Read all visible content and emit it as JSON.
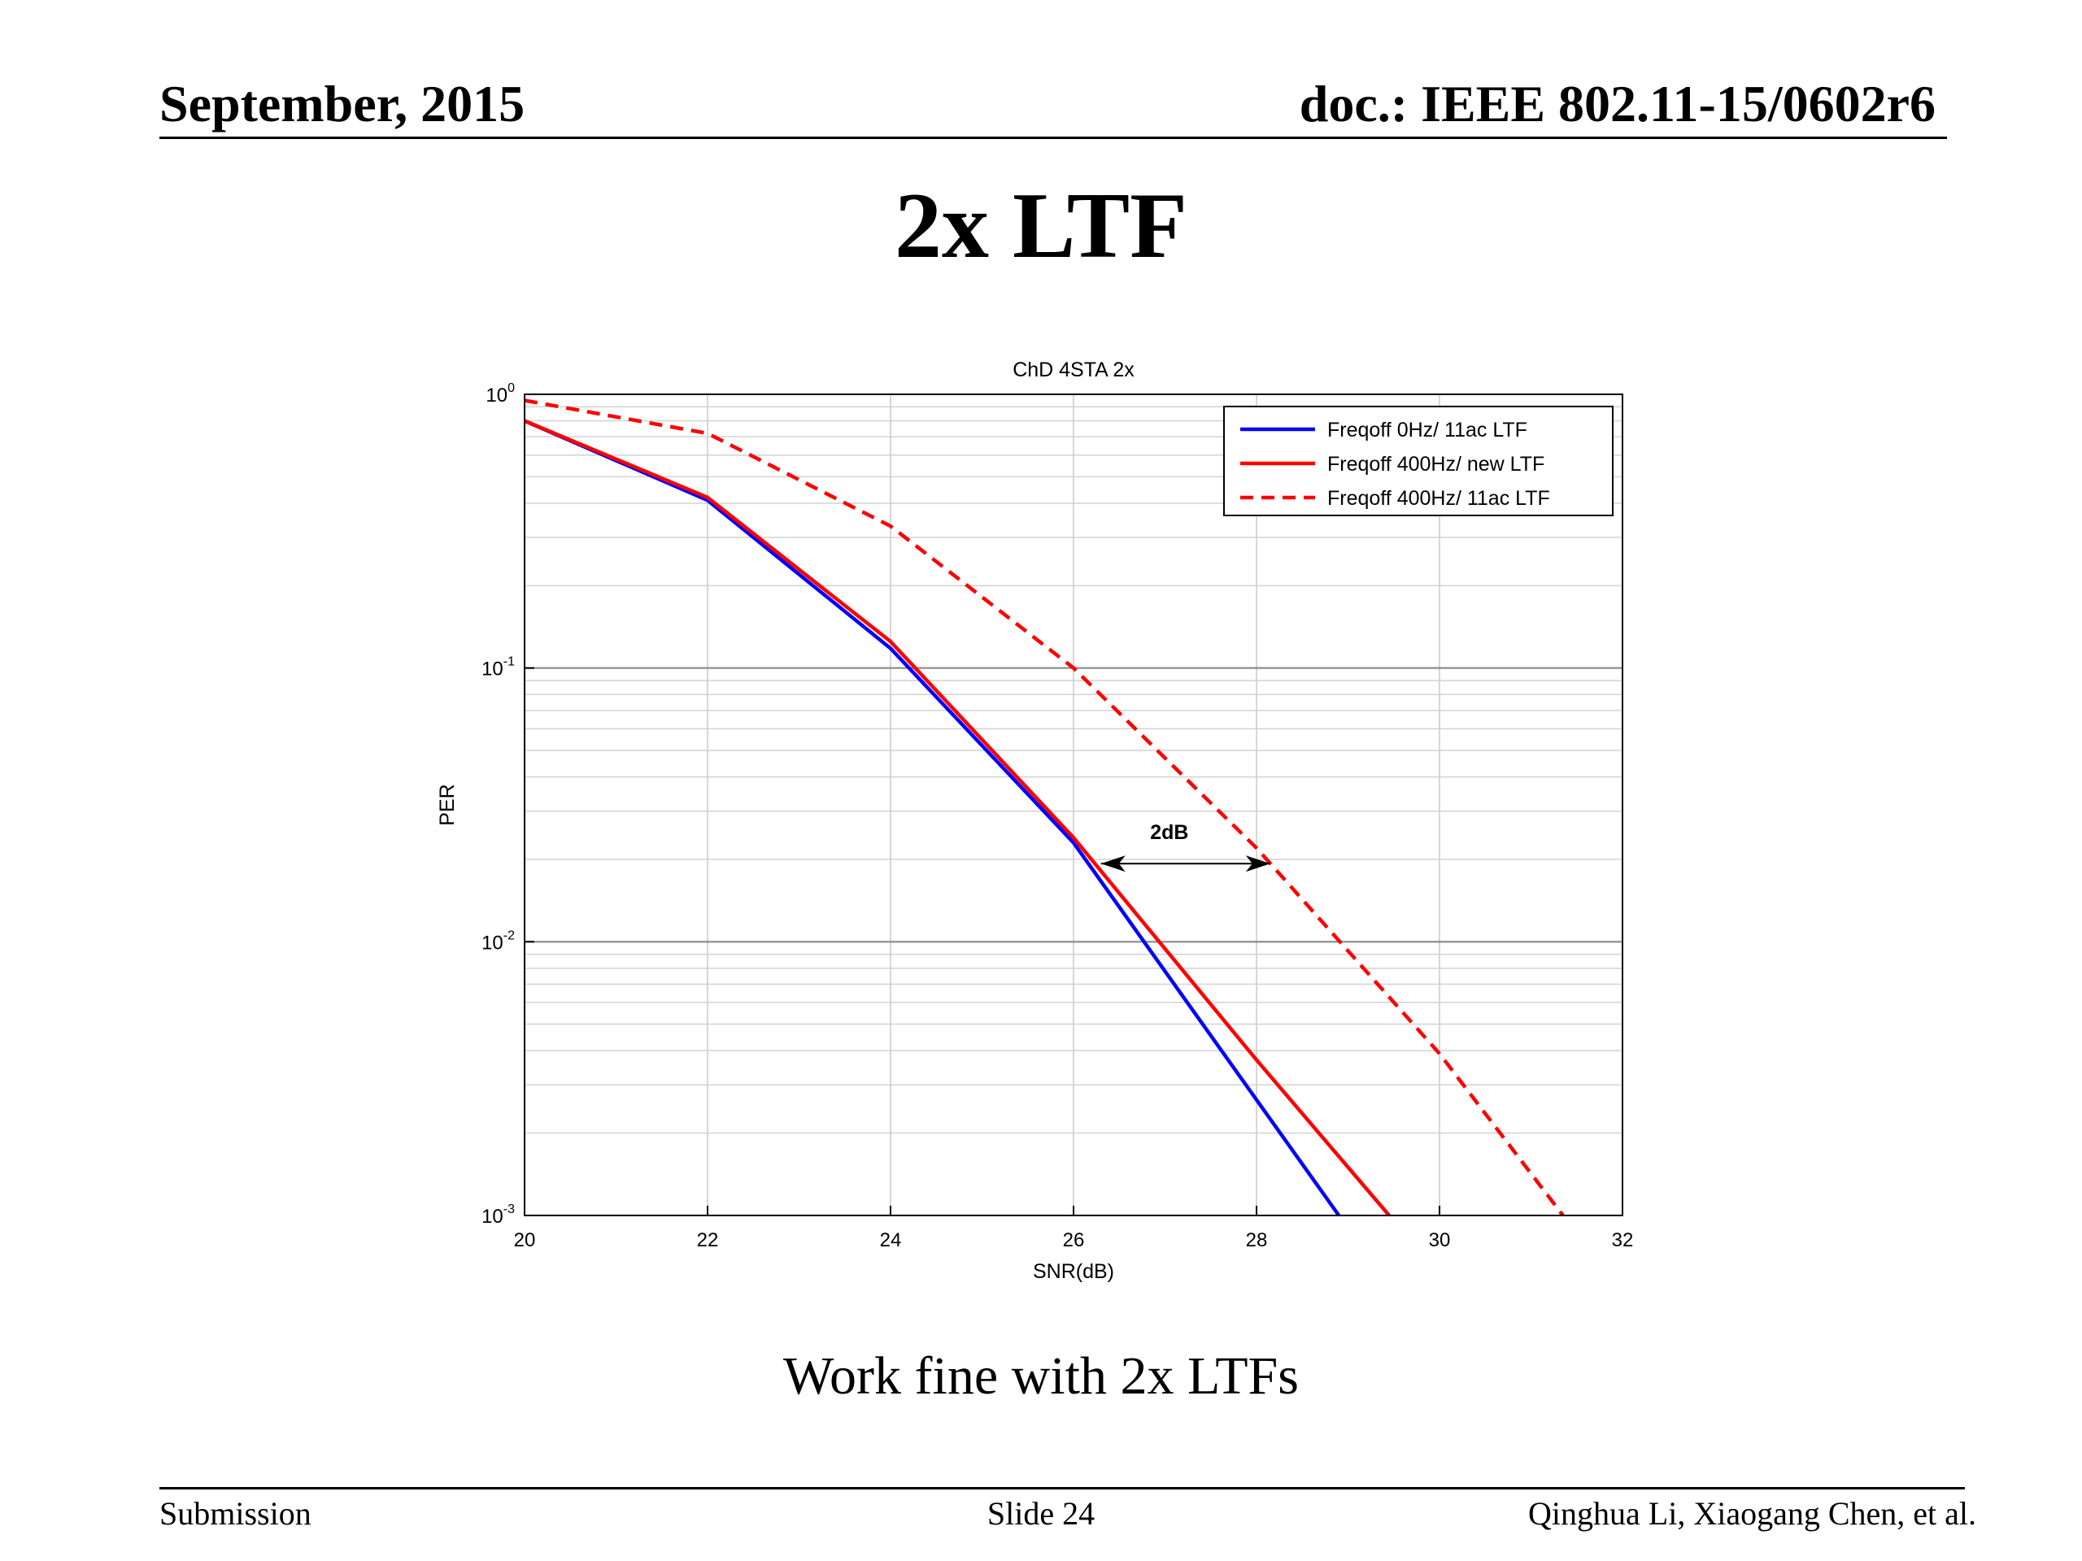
{
  "header": {
    "date": "September, 2015",
    "doc_id": "doc.: IEEE 802.11-15/0602r6"
  },
  "slide": {
    "title": "2x LTF",
    "caption": "Work fine with 2x LTFs"
  },
  "footer": {
    "left": "Submission",
    "center": "Slide 24",
    "right": "Qinghua Li, Xiaogang Chen, et al."
  },
  "chart_data": {
    "type": "line",
    "title": "ChD 4STA 2x",
    "xlabel": "SNR(dB)",
    "ylabel": "PER",
    "xlim": [
      20,
      32
    ],
    "ylim": [
      0.001,
      1
    ],
    "yscale": "log",
    "grid": true,
    "legend_position": "top-right",
    "x_ticks": [
      20,
      22,
      24,
      26,
      28,
      30,
      32
    ],
    "x_tick_labels": [
      "20",
      "22",
      "24",
      "26",
      "28",
      "30",
      "32"
    ],
    "y_ticks": [
      {
        "value": 1,
        "base": "10",
        "exp": "0"
      },
      {
        "value": 0.1,
        "base": "10",
        "exp": "-1"
      },
      {
        "value": 0.01,
        "base": "10",
        "exp": "-2"
      },
      {
        "value": 0.001,
        "base": "10",
        "exp": "-3"
      }
    ],
    "series": [
      {
        "name": "Freqoff 0Hz/ 11ac LTF",
        "color": "#0000ff",
        "dash": "solid",
        "x": [
          20,
          22,
          24,
          26,
          28.9
        ],
        "y": [
          0.8,
          0.41,
          0.118,
          0.023,
          0.001
        ]
      },
      {
        "name": "Freqoff 400Hz/ new LTF",
        "color": "#ff0000",
        "dash": "solid",
        "x": [
          20,
          22,
          24,
          26,
          28,
          29.45
        ],
        "y": [
          0.8,
          0.42,
          0.125,
          0.024,
          0.0037,
          0.001
        ]
      },
      {
        "name": "Freqoff 400Hz/ 11ac LTF",
        "color": "#ff0000",
        "dash": "dashed",
        "x": [
          20,
          22,
          24,
          26,
          28,
          30,
          31.35
        ],
        "y": [
          0.95,
          0.72,
          0.33,
          0.1,
          0.022,
          0.0039,
          0.001
        ]
      }
    ],
    "annotation": {
      "label": "2dB",
      "arrow_x": [
        26.3,
        28.15
      ],
      "arrow_y": 0.0193
    }
  }
}
